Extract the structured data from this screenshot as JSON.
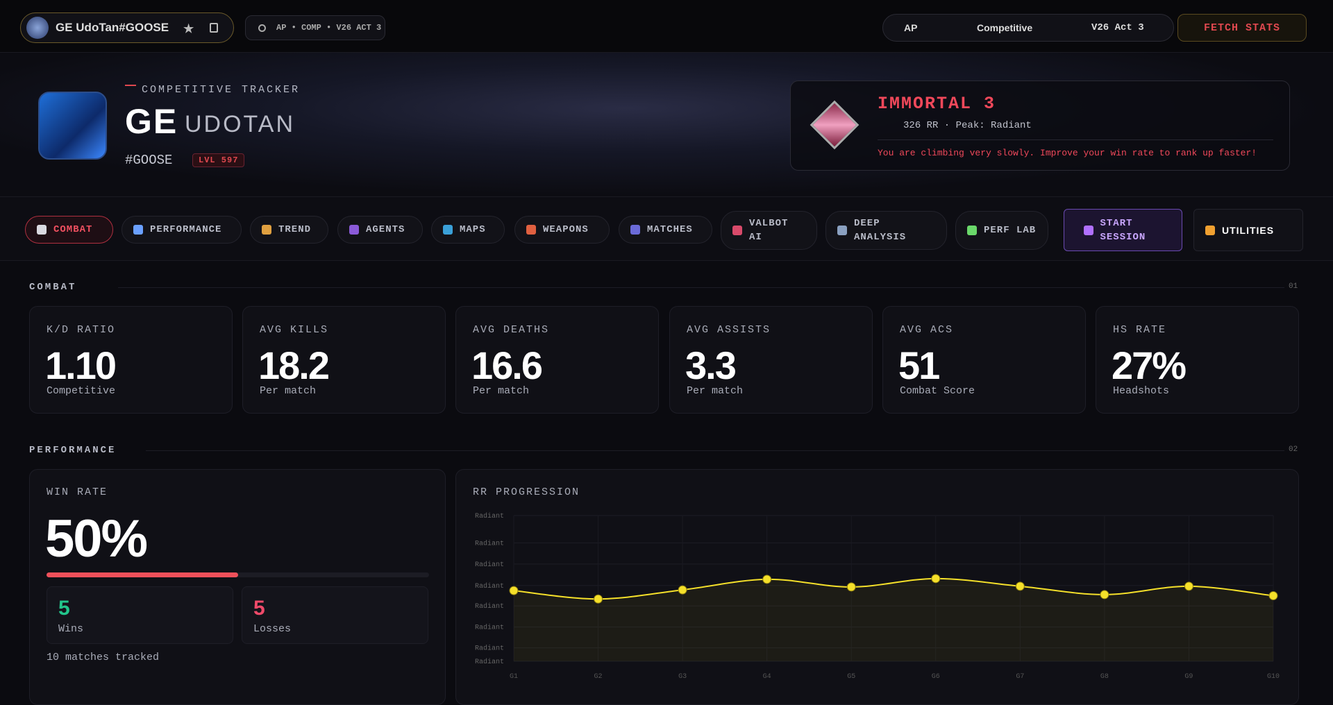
{
  "topbar": {
    "player": "GE UdoTan#GOOSE",
    "context": "AP • COMP • V26 ACT 3",
    "region": "AP",
    "mode": "Competitive",
    "act": "V26 Act 3",
    "fetch": "FETCH STATS"
  },
  "hero": {
    "eyebrow": "COMPETITIVE TRACKER",
    "name_first": "GE",
    "name_last": "UDOTAN",
    "tag": "#GOOSE",
    "level": "LVL 597",
    "rank": "IMMORTAL 3",
    "rank_detail": "326 RR · Peak: Radiant",
    "message": "You are climbing very slowly. Improve your win rate to rank up faster!"
  },
  "tabs": [
    "COMBAT",
    "PERFORMANCE",
    "TREND",
    "AGENTS",
    "MAPS",
    "WEAPONS",
    "MATCHES",
    "VALBOT AI",
    "DEEP ANALYSIS",
    "PERF LAB",
    "START SESSION",
    "UTILITIES"
  ],
  "combat": {
    "title": "COMBAT",
    "index": "01",
    "stats": [
      {
        "label": "K/D RATIO",
        "value": "1.10",
        "sub": "Competitive"
      },
      {
        "label": "AVG KILLS",
        "value": "18.2",
        "sub": "Per match"
      },
      {
        "label": "AVG DEATHS",
        "value": "16.6",
        "sub": "Per match"
      },
      {
        "label": "AVG ASSISTS",
        "value": "3.3",
        "sub": "Per match"
      },
      {
        "label": "AVG ACS",
        "value": "51",
        "sub": "Combat Score"
      },
      {
        "label": "HS RATE",
        "value": "27%",
        "sub": "Headshots"
      }
    ]
  },
  "performance": {
    "title": "PERFORMANCE",
    "index": "02",
    "win_rate": {
      "label": "WIN RATE",
      "value": 50,
      "value_label": "50%",
      "xlim": [
        0,
        100
      ],
      "wins": 5,
      "wins_label": "Wins",
      "losses": 5,
      "losses_label": "Losses",
      "note": "10 matches tracked"
    },
    "rr_chart": {
      "type": "line",
      "title": "RR PROGRESSION",
      "color": "#f5e02a",
      "categories": [
        "G1",
        "G2",
        "G3",
        "G4",
        "G5",
        "G6",
        "G7",
        "G8",
        "G9",
        "G10"
      ],
      "values": [
        194,
        171,
        196,
        225,
        204,
        227,
        206,
        183,
        206,
        180
      ],
      "ylim": [
        0,
        400
      ],
      "yticks": [
        {
          "value": 0,
          "label": "Radiant"
        },
        {
          "value": 37,
          "label": "Radiant"
        },
        {
          "value": 94,
          "label": "Radiant"
        },
        {
          "value": 152,
          "label": "Radiant"
        },
        {
          "value": 208,
          "label": "Radiant"
        },
        {
          "value": 267,
          "label": "Radiant"
        },
        {
          "value": 325,
          "label": "Radiant"
        },
        {
          "value": 400,
          "label": "Radiant"
        }
      ],
      "grid": true
    }
  }
}
